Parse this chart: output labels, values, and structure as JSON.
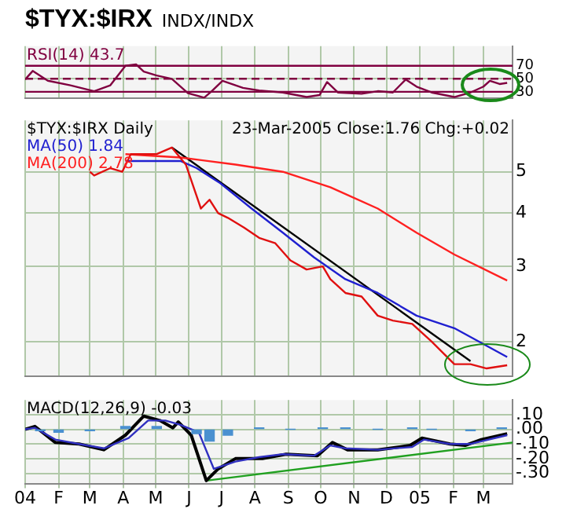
{
  "chart_data": [
    {
      "type": "line",
      "title": "$TYX:$IRX",
      "subtitle": "INDX/INDX",
      "xlim": [
        "2004-01-01",
        "2005-03-28"
      ],
      "xticks": [
        {
          "value": "2004-01-01",
          "label": null
        },
        {
          "value": "2004-02-01",
          "label": null
        },
        {
          "value": "2004-03-01",
          "label": null
        },
        {
          "value": "2004-04-01",
          "label": null
        },
        {
          "value": "2004-05-01",
          "label": null
        },
        {
          "value": "2004-06-01",
          "label": null
        },
        {
          "value": "2004-07-01",
          "label": null
        },
        {
          "value": "2004-08-01",
          "label": null
        },
        {
          "value": "2004-09-01",
          "label": null
        },
        {
          "value": "2004-10-01",
          "label": null
        },
        {
          "value": "2004-11-01",
          "label": null
        },
        {
          "value": "2004-12-01",
          "label": null
        },
        {
          "value": "2005-01-01",
          "label": null
        },
        {
          "value": "2005-02-01",
          "label": null
        },
        {
          "value": "2005-03-01",
          "label": null
        }
      ],
      "ylim": [
        20,
        100
      ],
      "yticks": [
        30,
        50,
        70
      ],
      "tick_labels": "y",
      "grid": true,
      "legend": "top left",
      "ref_lines": [
        {
          "axis": "y",
          "value": 70,
          "color": "#800040",
          "line_style": "solid"
        },
        {
          "axis": "y",
          "value": 50,
          "color": "#800040",
          "line_style": "dashed"
        },
        {
          "axis": "y",
          "value": 30,
          "color": "#800040",
          "line_style": "solid"
        }
      ],
      "series": [
        {
          "name": "RSI(14) 43.7",
          "color": "#800040",
          "x": [
            "2004-01-01",
            "2004-01-08",
            "2004-01-22",
            "2004-02-12",
            "2004-03-05",
            "2004-03-20",
            "2004-04-03",
            "2004-04-13",
            "2004-04-20",
            "2004-05-02",
            "2004-05-16",
            "2004-05-31",
            "2004-06-15",
            "2004-06-22",
            "2004-07-02",
            "2004-07-21",
            "2004-08-05",
            "2004-08-27",
            "2004-09-18",
            "2004-09-30",
            "2004-10-07",
            "2004-10-17",
            "2004-11-08",
            "2004-11-23",
            "2004-12-07",
            "2004-12-19",
            "2004-12-29",
            "2005-01-12",
            "2005-02-02",
            "2005-02-17",
            "2005-03-01",
            "2005-03-07",
            "2005-03-16",
            "2005-03-23"
          ],
          "values": [
            49,
            62,
            47,
            40,
            31,
            40,
            70,
            72,
            61,
            55,
            50,
            28,
            21,
            31,
            47,
            36,
            32,
            29,
            22,
            25,
            45,
            29,
            27,
            31,
            29,
            49,
            38,
            29,
            22,
            29,
            38,
            47,
            42,
            43.7
          ]
        }
      ]
    },
    {
      "type": "line",
      "xlim": [
        "2004-01-01",
        "2005-03-28"
      ],
      "xticks": [
        {
          "value": "2004-01-01",
          "label": null
        },
        {
          "value": "2004-02-01",
          "label": null
        },
        {
          "value": "2004-03-01",
          "label": null
        },
        {
          "value": "2004-04-01",
          "label": null
        },
        {
          "value": "2004-05-01",
          "label": null
        },
        {
          "value": "2004-06-01",
          "label": null
        },
        {
          "value": "2004-07-01",
          "label": null
        },
        {
          "value": "2004-08-01",
          "label": null
        },
        {
          "value": "2004-09-01",
          "label": null
        },
        {
          "value": "2004-10-01",
          "label": null
        },
        {
          "value": "2004-11-01",
          "label": null
        },
        {
          "value": "2004-12-01",
          "label": null
        },
        {
          "value": "2005-01-01",
          "label": null
        },
        {
          "value": "2005-02-01",
          "label": null
        },
        {
          "value": "2005-03-01",
          "label": null
        }
      ],
      "ylim": [
        1.66,
        6.6
      ],
      "yticks": [
        2,
        3,
        4,
        5
      ],
      "log": true,
      "tick_labels": "y",
      "grid": true,
      "legend": "top left",
      "annotations": [
        "23-Mar-2005 Close:1.76 Chg:+0.02"
      ],
      "series": [
        {
          "name": "$TYX:$IRX Daily",
          "color": "#e01010",
          "x": [
            "2004-03-01",
            "2004-03-05",
            "2004-03-20",
            "2004-03-31",
            "2004-04-08",
            "2004-05-02",
            "2004-05-16",
            "2004-05-29",
            "2004-06-12",
            "2004-06-20",
            "2004-06-28",
            "2004-07-07",
            "2004-07-22",
            "2004-08-05",
            "2004-08-20",
            "2004-09-03",
            "2004-09-18",
            "2004-10-03",
            "2004-10-10",
            "2004-10-24",
            "2004-11-08",
            "2004-11-23",
            "2004-12-07",
            "2004-12-25",
            "2005-01-12",
            "2005-02-02",
            "2005-02-17",
            "2005-03-04",
            "2005-03-23"
          ],
          "values": [
            5.0,
            4.9,
            5.1,
            5.0,
            5.5,
            5.5,
            5.7,
            5.2,
            4.1,
            4.3,
            4.0,
            3.9,
            3.7,
            3.5,
            3.4,
            3.1,
            2.95,
            3.0,
            2.8,
            2.6,
            2.55,
            2.3,
            2.24,
            2.2,
            2.0,
            1.77,
            1.77,
            1.73,
            1.76
          ]
        },
        {
          "name": "MA(50) 1.84",
          "color": "#2020d0",
          "x": [
            "2004-04-03",
            "2004-05-24",
            "2004-06-08",
            "2004-06-30",
            "2004-07-29",
            "2004-08-27",
            "2004-09-25",
            "2004-10-24",
            "2004-11-23",
            "2004-12-29",
            "2005-02-02",
            "2005-03-23"
          ],
          "values": [
            5.3,
            5.3,
            5.1,
            4.7,
            4.1,
            3.6,
            3.15,
            2.8,
            2.6,
            2.3,
            2.15,
            1.84
          ]
        },
        {
          "name": "MA(200) 2.78",
          "color": "#ff2020",
          "x": [
            "2004-04-03",
            "2004-05-24",
            "2004-07-14",
            "2004-08-27",
            "2004-10-10",
            "2004-11-23",
            "2004-12-29",
            "2005-02-02",
            "2005-03-23"
          ],
          "values": [
            5.5,
            5.4,
            5.2,
            5.0,
            4.6,
            4.1,
            3.6,
            3.2,
            2.78
          ]
        },
        {
          "type": "line",
          "color": "#000000",
          "x": [
            "2004-05-16",
            "2005-02-17"
          ],
          "values": [
            5.7,
            1.8
          ]
        }
      ]
    },
    {
      "type": "line",
      "xlim": [
        "2004-01-01",
        "2005-03-28"
      ],
      "xticks": [
        {
          "value": "2004-01-01",
          "label": "04"
        },
        {
          "value": "2004-02-01",
          "label": "F"
        },
        {
          "value": "2004-03-01",
          "label": "M"
        },
        {
          "value": "2004-04-01",
          "label": "A"
        },
        {
          "value": "2004-05-01",
          "label": "M"
        },
        {
          "value": "2004-06-01",
          "label": "J"
        },
        {
          "value": "2004-07-01",
          "label": "J"
        },
        {
          "value": "2004-08-01",
          "label": "A"
        },
        {
          "value": "2004-09-01",
          "label": "S"
        },
        {
          "value": "2004-10-01",
          "label": "O"
        },
        {
          "value": "2004-11-01",
          "label": "N"
        },
        {
          "value": "2004-12-01",
          "label": "D"
        },
        {
          "value": "2005-01-01",
          "label": "05"
        },
        {
          "value": "2005-02-01",
          "label": "F"
        },
        {
          "value": "2005-03-01",
          "label": "M"
        }
      ],
      "ylim": [
        -0.37,
        0.2
      ],
      "yticks": [
        {
          "value": 0.1,
          "label": ".10"
        },
        {
          "value": 0,
          "label": ".00"
        },
        {
          "value": -0.1,
          "label": "-.10"
        },
        {
          "value": -0.2,
          "label": "-.20"
        },
        {
          "value": -0.3,
          "label": "-.30"
        }
      ],
      "grid": true,
      "legend": "top left",
      "series": [
        {
          "type": "bar",
          "color": "#4a90d0",
          "x": [
            "2004-01-15",
            "2004-02-01",
            "2004-03-01",
            "2004-04-03",
            "2004-05-02",
            "2004-06-08",
            "2004-06-20",
            "2004-07-07",
            "2004-08-05",
            "2004-09-03",
            "2004-10-03",
            "2004-10-24",
            "2004-11-23",
            "2004-12-25",
            "2005-01-12",
            "2005-02-17",
            "2005-03-18"
          ],
          "values": [
            -0.01,
            -0.02,
            -0.01,
            0.02,
            0.02,
            -0.03,
            -0.08,
            -0.04,
            0.01,
            0.0,
            0.01,
            0.01,
            0.0,
            0.01,
            0.0,
            -0.01,
            0.01
          ]
        },
        {
          "color": "#3030c0",
          "x": [
            "2004-01-01",
            "2004-01-10",
            "2004-01-29",
            "2004-02-20",
            "2004-03-14",
            "2004-04-06",
            "2004-04-24",
            "2004-05-10",
            "2004-05-24",
            "2004-06-10",
            "2004-06-24",
            "2004-07-14",
            "2004-08-05",
            "2004-08-27",
            "2004-09-25",
            "2004-10-10",
            "2004-10-24",
            "2004-11-23",
            "2004-12-25",
            "2005-01-05",
            "2005-01-29",
            "2005-02-17",
            "2005-03-23"
          ],
          "values": [
            0.0,
            0.01,
            -0.07,
            -0.1,
            -0.13,
            -0.06,
            0.06,
            0.06,
            0.03,
            -0.02,
            -0.27,
            -0.22,
            -0.19,
            -0.17,
            -0.18,
            -0.11,
            -0.13,
            -0.14,
            -0.12,
            -0.07,
            -0.1,
            -0.1,
            -0.04
          ]
        },
        {
          "name": "MACD(12,26,9) -0.03",
          "color": "#000000",
          "x": [
            "2004-01-01",
            "2004-01-10",
            "2004-01-29",
            "2004-02-20",
            "2004-03-14",
            "2004-04-03",
            "2004-04-20",
            "2004-05-05",
            "2004-05-17",
            "2004-05-22",
            "2004-06-03",
            "2004-06-17",
            "2004-06-28",
            "2004-07-14",
            "2004-08-08",
            "2004-08-30",
            "2004-09-28",
            "2004-10-12",
            "2004-10-26",
            "2004-11-23",
            "2004-12-23",
            "2005-01-03",
            "2005-01-29",
            "2005-02-12",
            "2005-02-27",
            "2005-03-23"
          ],
          "values": [
            0.0,
            0.02,
            -0.09,
            -0.1,
            -0.14,
            -0.04,
            0.09,
            0.06,
            0.01,
            0.05,
            -0.04,
            -0.35,
            -0.27,
            -0.2,
            -0.2,
            -0.17,
            -0.18,
            -0.09,
            -0.14,
            -0.14,
            -0.11,
            -0.06,
            -0.1,
            -0.11,
            -0.07,
            -0.03
          ]
        },
        {
          "type": "line",
          "color": "#20a020",
          "x": [
            "2004-06-17",
            "2005-03-28"
          ],
          "values": [
            -0.35,
            -0.09
          ]
        }
      ]
    }
  ]
}
